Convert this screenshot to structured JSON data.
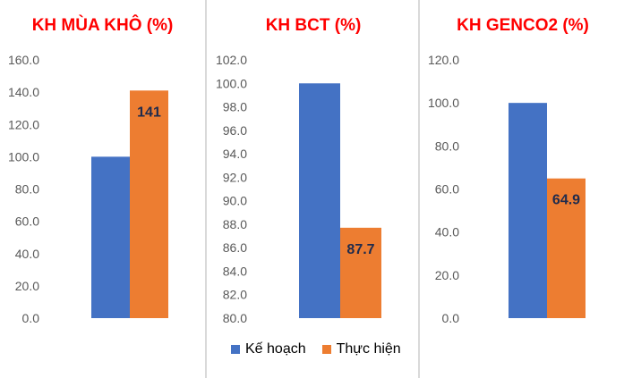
{
  "chart_data": [
    {
      "type": "bar",
      "title": "KH MÙA KHÔ (%)",
      "categories": [
        ""
      ],
      "series": [
        {
          "name": "Kế hoạch",
          "values": [
            100
          ],
          "color": "#4472C4"
        },
        {
          "name": "Thực hiện",
          "values": [
            141
          ],
          "color": "#ED7D31"
        }
      ],
      "data_labels": [
        "",
        "141"
      ],
      "yticks": [
        "0.0",
        "20.0",
        "40.0",
        "60.0",
        "80.0",
        "100.0",
        "120.0",
        "140.0",
        "160.0"
      ],
      "ylim": [
        0,
        160
      ]
    },
    {
      "type": "bar",
      "title": "KH BCT (%)",
      "categories": [
        ""
      ],
      "series": [
        {
          "name": "Kế hoạch",
          "values": [
            100
          ],
          "color": "#4472C4"
        },
        {
          "name": "Thực hiện",
          "values": [
            87.7
          ],
          "color": "#ED7D31"
        }
      ],
      "data_labels": [
        "",
        "87.7"
      ],
      "yticks": [
        "80.0",
        "82.0",
        "84.0",
        "86.0",
        "88.0",
        "90.0",
        "92.0",
        "94.0",
        "96.0",
        "98.0",
        "100.0",
        "102.0"
      ],
      "ylim": [
        80,
        102
      ]
    },
    {
      "type": "bar",
      "title": "KH GENCO2 (%)",
      "categories": [
        ""
      ],
      "series": [
        {
          "name": "Kế hoạch",
          "values": [
            100
          ],
          "color": "#4472C4"
        },
        {
          "name": "Thực hiện",
          "values": [
            64.9
          ],
          "color": "#ED7D31"
        }
      ],
      "data_labels": [
        "",
        "64.9"
      ],
      "yticks": [
        "0.0",
        "20.0",
        "40.0",
        "60.0",
        "80.0",
        "100.0",
        "120.0"
      ],
      "ylim": [
        0,
        120
      ]
    }
  ],
  "legend": {
    "placement": "bottom-center",
    "items": [
      {
        "label": "Kế hoạch",
        "color": "#4472C4"
      },
      {
        "label": "Thực hiện",
        "color": "#ED7D31"
      }
    ]
  }
}
